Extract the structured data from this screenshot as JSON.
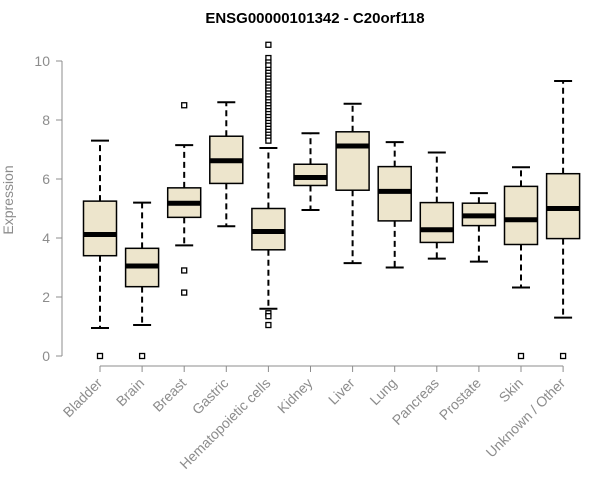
{
  "chart_data": {
    "type": "box",
    "title": "ENSG00000101342 - C20orf118",
    "xlabel": "",
    "ylabel": "Expression",
    "ylim": [
      0,
      10.6
    ],
    "yticks": [
      0,
      2,
      4,
      6,
      8,
      10
    ],
    "box_fill": "#ede5cc",
    "box_stroke": "#000000",
    "axis_color": "#8c8c8c",
    "categories": [
      "Bladder",
      "Brain",
      "Breast",
      "Gastric",
      "Hematopoietic cells",
      "Kidney",
      "Liver",
      "Lung",
      "Pancreas",
      "Prostate",
      "Skin",
      "Unknown / Other"
    ],
    "boxes": [
      {
        "min": 0.95,
        "q1": 3.4,
        "median": 4.12,
        "q3": 5.25,
        "max": 7.3,
        "outliers": [
          0.0
        ]
      },
      {
        "min": 1.05,
        "q1": 2.35,
        "median": 3.05,
        "q3": 3.65,
        "max": 5.2,
        "outliers": [
          0.0
        ]
      },
      {
        "min": 3.75,
        "q1": 4.7,
        "median": 5.18,
        "q3": 5.7,
        "max": 7.15,
        "outliers": [
          8.5,
          2.9,
          2.15
        ]
      },
      {
        "min": 4.4,
        "q1": 5.85,
        "median": 6.62,
        "q3": 7.45,
        "max": 8.6,
        "outliers": []
      },
      {
        "min": 1.6,
        "q1": 3.6,
        "median": 4.22,
        "q3": 5.0,
        "max": 7.05,
        "outliers": [
          10.55,
          10.1,
          9.95,
          9.85,
          9.7,
          9.6,
          9.5,
          9.4,
          9.3,
          9.2,
          9.1,
          9.0,
          8.9,
          8.8,
          8.7,
          8.6,
          8.5,
          8.4,
          8.3,
          8.2,
          8.1,
          8.0,
          7.9,
          7.8,
          7.7,
          7.6,
          7.5,
          7.4,
          7.3,
          1.45,
          1.35,
          1.05
        ]
      },
      {
        "min": 4.95,
        "q1": 5.78,
        "median": 6.05,
        "q3": 6.5,
        "max": 7.55,
        "outliers": []
      },
      {
        "min": 3.15,
        "q1": 5.62,
        "median": 7.12,
        "q3": 7.6,
        "max": 8.55,
        "outliers": []
      },
      {
        "min": 3.0,
        "q1": 4.58,
        "median": 5.58,
        "q3": 6.42,
        "max": 7.25,
        "outliers": []
      },
      {
        "min": 3.3,
        "q1": 3.85,
        "median": 4.28,
        "q3": 5.2,
        "max": 6.9,
        "outliers": []
      },
      {
        "min": 3.2,
        "q1": 4.42,
        "median": 4.75,
        "q3": 5.18,
        "max": 5.52,
        "outliers": []
      },
      {
        "min": 2.32,
        "q1": 3.78,
        "median": 4.62,
        "q3": 5.75,
        "max": 6.4,
        "outliers": [
          0.0
        ]
      },
      {
        "min": 1.3,
        "q1": 3.98,
        "median": 5.0,
        "q3": 6.18,
        "max": 9.32,
        "outliers": [
          0.0
        ]
      }
    ]
  }
}
